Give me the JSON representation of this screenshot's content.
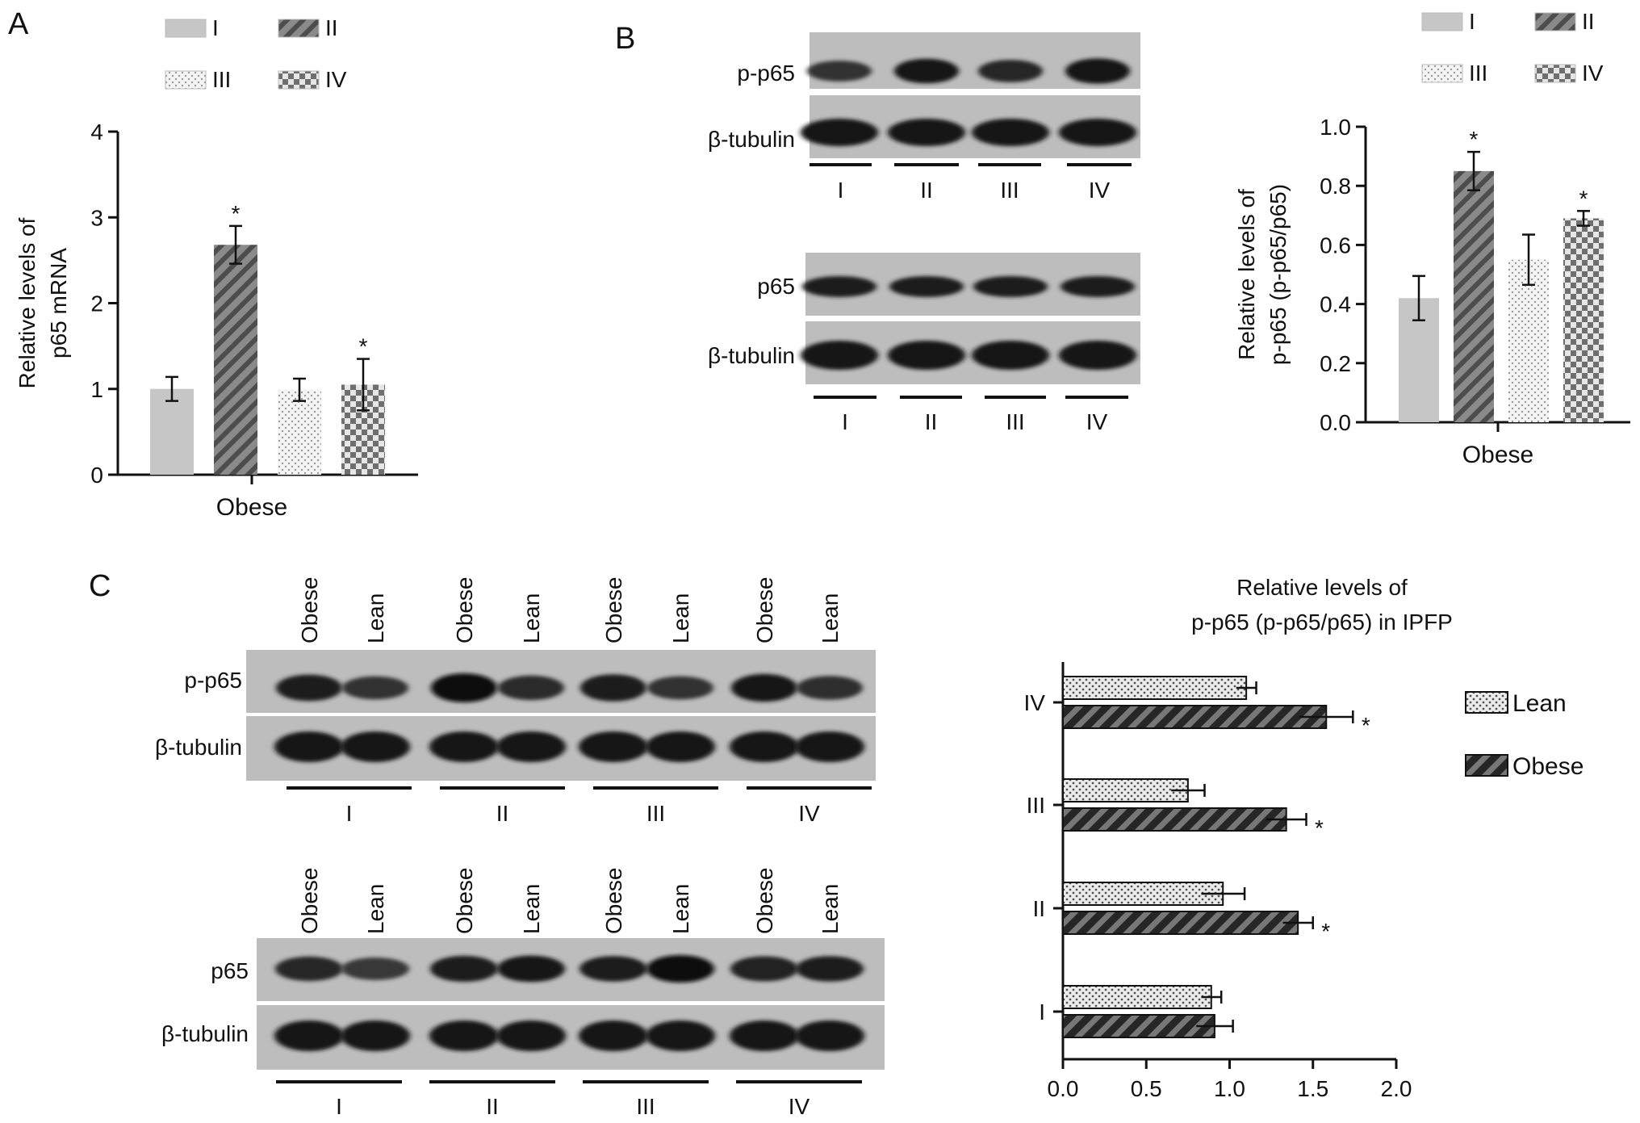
{
  "panels": {
    "a": "A",
    "b": "B",
    "c": "C"
  },
  "colors": {
    "axis": "#111111",
    "bar_light": "#c9c9c9",
    "bar_dark": "#6e6e6e",
    "bar_bg_dark": "#4a4a4a"
  },
  "legend_groups": [
    {
      "label": "I",
      "pattern": "solid"
    },
    {
      "label": "II",
      "pattern": "hatch"
    },
    {
      "label": "III",
      "pattern": "dots"
    },
    {
      "label": "IV",
      "pattern": "checker"
    }
  ],
  "blots": {
    "b": {
      "upper_labels": [
        "p-p65",
        "β-tubulin"
      ],
      "lower_labels": [
        "p65",
        "β-tubulin"
      ],
      "lanes": [
        "I",
        "II",
        "III",
        "IV"
      ],
      "intensity_ppp65": [
        0.55,
        0.9,
        0.7,
        0.95
      ],
      "intensity_p65": [
        0.8,
        0.85,
        0.8,
        0.8
      ]
    },
    "c": {
      "upper_labels": [
        "p-p65",
        "β-tubulin"
      ],
      "lower_labels": [
        "p65",
        "β-tubulin"
      ],
      "lane_labels": [
        "Obese",
        "Lean",
        "Obese",
        "Lean",
        "Obese",
        "Lean",
        "Obese",
        "Lean"
      ],
      "groups": [
        "I",
        "II",
        "III",
        "IV"
      ],
      "intensity_ppp65": [
        0.8,
        0.55,
        1.0,
        0.65,
        0.85,
        0.55,
        0.9,
        0.6
      ],
      "intensity_p65": [
        0.7,
        0.5,
        0.85,
        0.9,
        0.8,
        1.0,
        0.75,
        0.8
      ]
    }
  },
  "chart_data": [
    {
      "type": "bar",
      "panel": "A",
      "categories": [
        "I",
        "II",
        "III",
        "IV"
      ],
      "values": [
        1.0,
        2.68,
        0.99,
        1.05
      ],
      "errors": [
        0.14,
        0.22,
        0.13,
        0.3
      ],
      "significance": [
        "",
        "*",
        "",
        "*"
      ],
      "xlabel": "Obese",
      "ylabel": "Relative levels of\np65 mRNA",
      "ylim": [
        0,
        4
      ],
      "yticks": [
        0,
        1,
        2,
        3,
        4
      ],
      "legend": "top"
    },
    {
      "type": "bar",
      "panel": "B",
      "categories": [
        "I",
        "II",
        "III",
        "IV"
      ],
      "values": [
        0.42,
        0.85,
        0.55,
        0.69
      ],
      "errors": [
        0.075,
        0.065,
        0.085,
        0.025
      ],
      "significance": [
        "",
        "*",
        "",
        "*"
      ],
      "xlabel": "Obese",
      "ylabel": "Relative levels of\np-p65 (p-p65/p65)",
      "ylim": [
        0,
        1.0
      ],
      "yticks": [
        0.0,
        0.2,
        0.4,
        0.6,
        0.8,
        1.0
      ],
      "legend": "top"
    },
    {
      "type": "bar",
      "orientation": "horizontal",
      "panel": "C",
      "title": "Relative levels of\np-p65 (p-p65/p65) in IPFP",
      "categories": [
        "IV",
        "III",
        "II",
        "I"
      ],
      "series": [
        {
          "name": "Lean",
          "values": [
            1.1,
            0.75,
            0.96,
            0.89
          ],
          "errors": [
            0.06,
            0.1,
            0.13,
            0.06
          ],
          "significance": [
            "",
            "",
            "",
            ""
          ]
        },
        {
          "name": "Obese",
          "values": [
            1.58,
            1.34,
            1.41,
            0.91
          ],
          "errors": [
            0.16,
            0.12,
            0.09,
            0.11
          ],
          "significance": [
            "*",
            "*",
            "*",
            ""
          ]
        }
      ],
      "xlim": [
        0,
        2.0
      ],
      "xticks": [
        0.0,
        0.5,
        1.0,
        1.5,
        2.0
      ],
      "legend": "right"
    }
  ]
}
